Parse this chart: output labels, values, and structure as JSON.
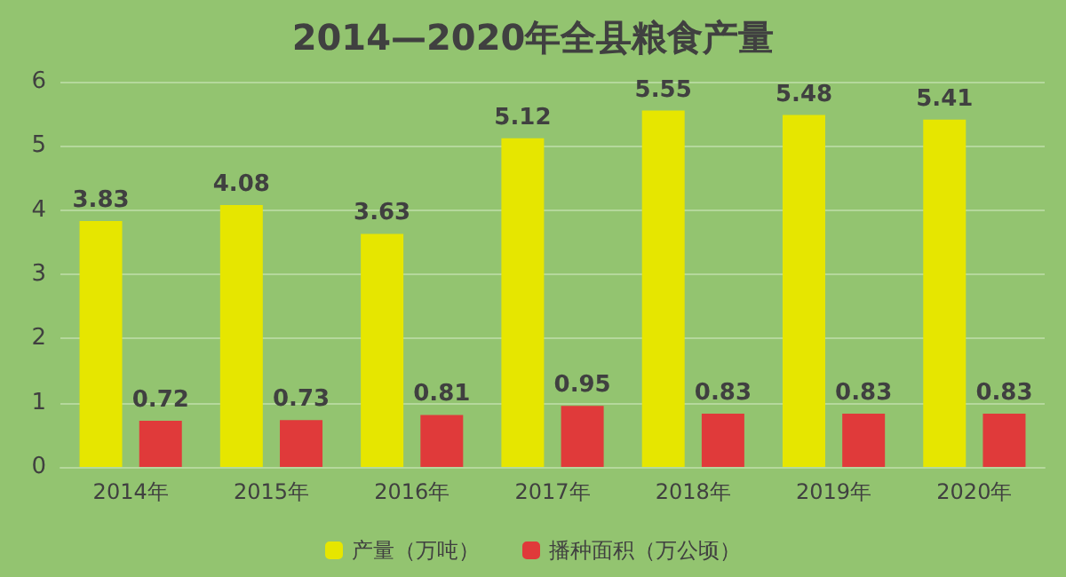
{
  "chart_data": {
    "type": "bar",
    "title": "2014—2020年全县粮食产量",
    "categories": [
      "2014年",
      "2015年",
      "2016年",
      "2017年",
      "2018年",
      "2019年",
      "2020年"
    ],
    "series": [
      {
        "name": "产量（万吨）",
        "color": "#e6e600",
        "values": [
          3.83,
          4.08,
          3.63,
          5.12,
          5.55,
          5.48,
          5.41
        ]
      },
      {
        "name": "播种面积（万公顷）",
        "color": "#e03a3a",
        "values": [
          0.72,
          0.73,
          0.81,
          0.95,
          0.83,
          0.83,
          0.83
        ]
      }
    ],
    "ylim": [
      0,
      6
    ],
    "yticks": [
      0,
      1,
      2,
      3,
      4,
      5,
      6
    ],
    "grid": "y",
    "legend": "bottom",
    "data_labels": true
  }
}
